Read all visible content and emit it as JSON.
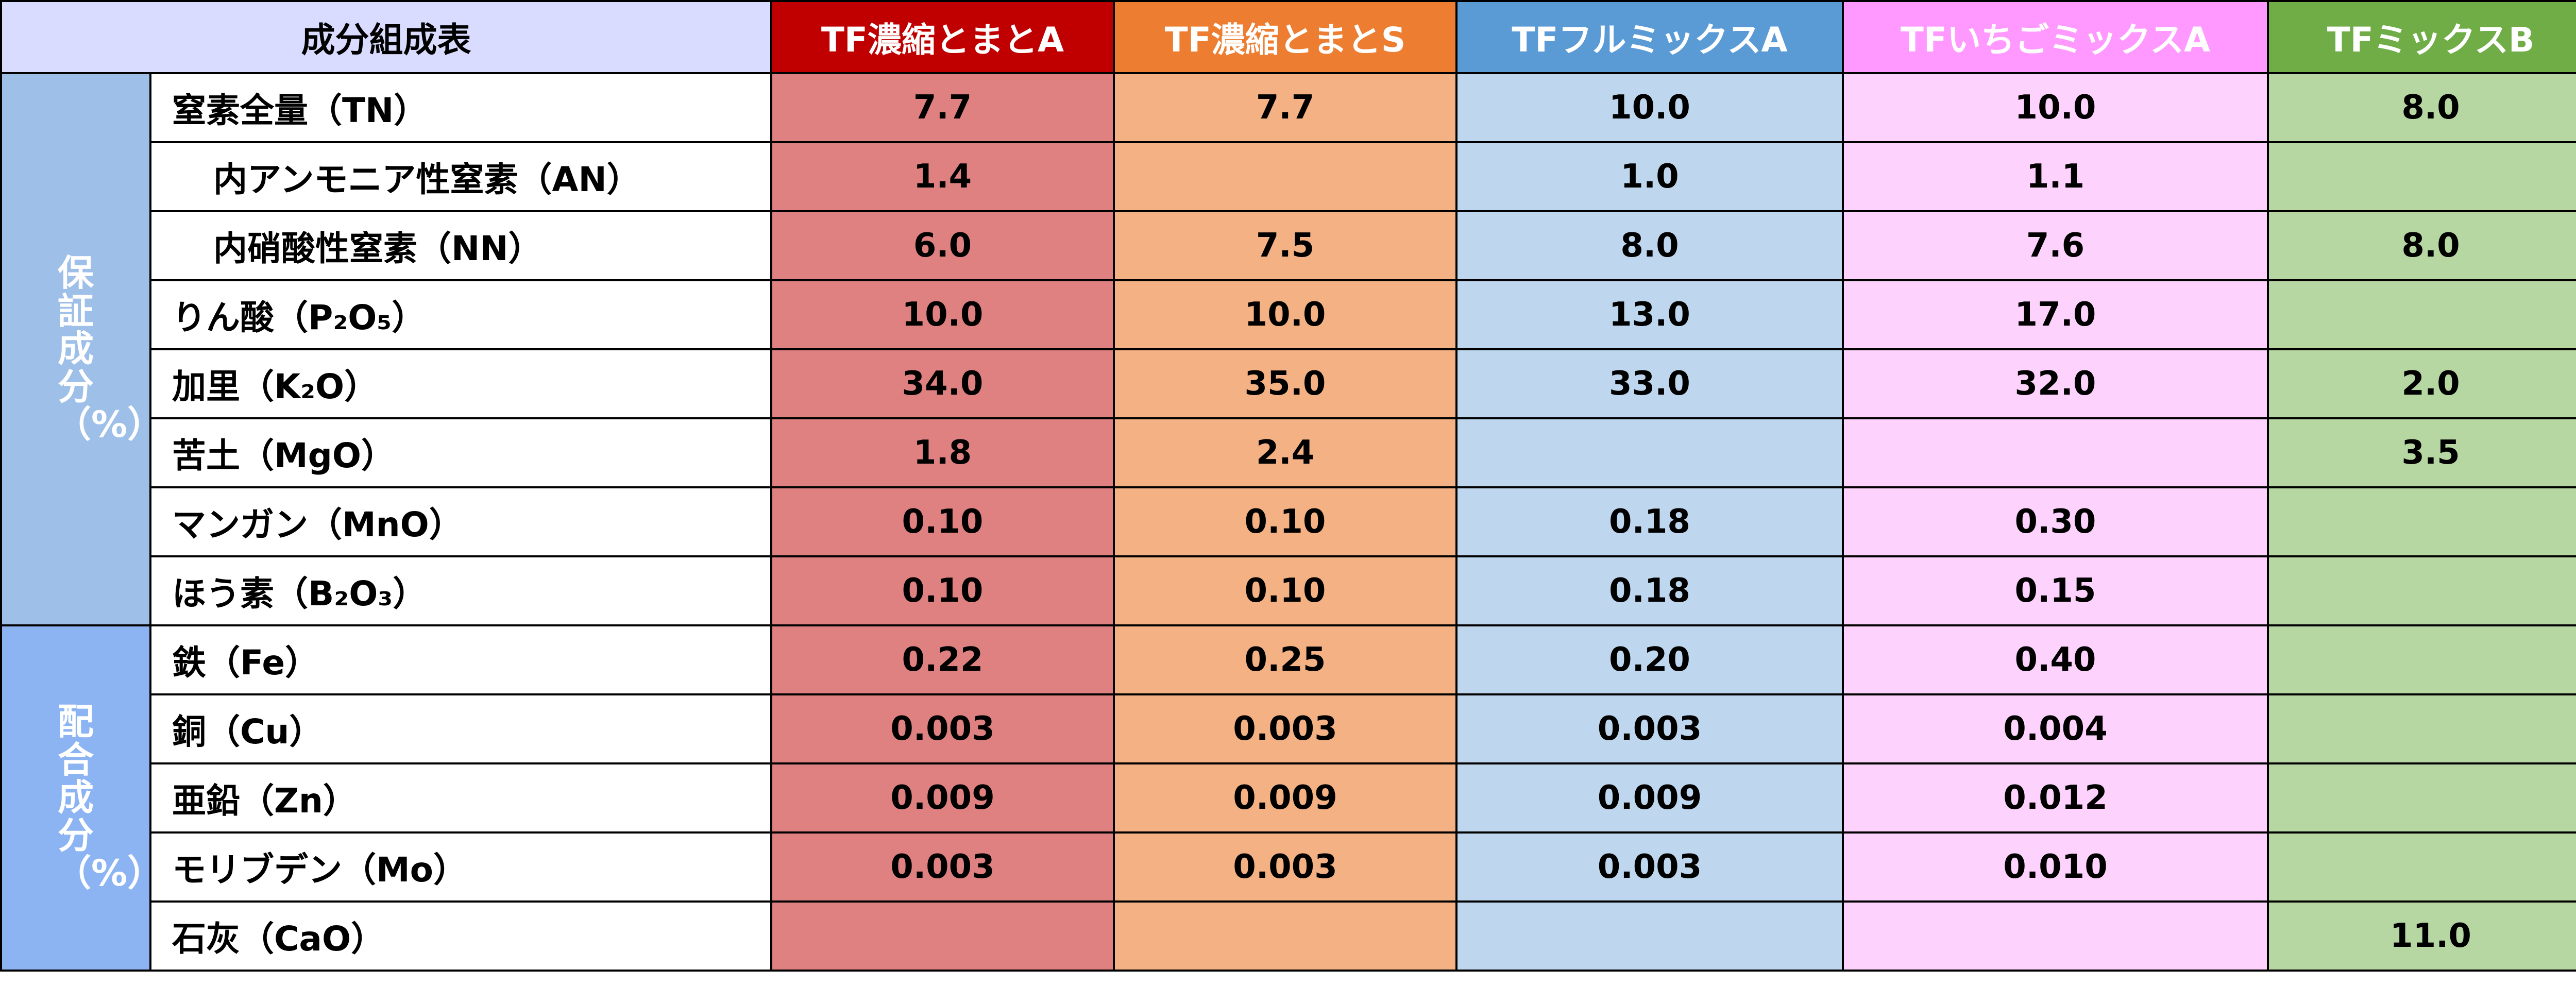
{
  "header": {
    "corner": "成分組成表",
    "products": [
      {
        "name": "TF濃縮とまとA",
        "color": "#c00000"
      },
      {
        "name": "TF濃縮とまとS",
        "color": "#ed7d31"
      },
      {
        "name": "TFフルミックスA",
        "color": "#5b9bd5"
      },
      {
        "name": "TFいちごミックスA",
        "color": "#ff99ff"
      },
      {
        "name": "TFミックスB",
        "color": "#70ad47"
      }
    ]
  },
  "groups": {
    "guaranteed": "保証成分（%）",
    "blended": "配合成分（%）"
  },
  "rows": [
    {
      "label": "窒素全量（TN）",
      "values": [
        "7.7",
        "7.7",
        "10.0",
        "10.0",
        "8.0"
      ]
    },
    {
      "label": "内アンモニア性窒素（AN）",
      "values": [
        "1.4",
        "",
        "1.0",
        "1.1",
        ""
      ]
    },
    {
      "label": "内硝酸性窒素（NN）",
      "values": [
        "6.0",
        "7.5",
        "8.0",
        "7.6",
        "8.0"
      ]
    },
    {
      "label": "りん酸（P₂O₅）",
      "values": [
        "10.0",
        "10.0",
        "13.0",
        "17.0",
        ""
      ]
    },
    {
      "label": "加里（K₂O）",
      "values": [
        "34.0",
        "35.0",
        "33.0",
        "32.0",
        "2.0"
      ]
    },
    {
      "label": "苦土（MgO）",
      "values": [
        "1.8",
        "2.4",
        "",
        "",
        "3.5"
      ]
    },
    {
      "label": "マンガン（MnO）",
      "values": [
        "0.10",
        "0.10",
        "0.18",
        "0.30",
        ""
      ]
    },
    {
      "label": "ほう素（B₂O₃）",
      "values": [
        "0.10",
        "0.10",
        "0.18",
        "0.15",
        ""
      ]
    },
    {
      "label": "鉄（Fe）",
      "values": [
        "0.22",
        "0.25",
        "0.20",
        "0.40",
        ""
      ]
    },
    {
      "label": "銅（Cu）",
      "values": [
        "0.003",
        "0.003",
        "0.003",
        "0.004",
        ""
      ]
    },
    {
      "label": "亜鉛（Zn）",
      "values": [
        "0.009",
        "0.009",
        "0.009",
        "0.012",
        ""
      ]
    },
    {
      "label": "モリブデン（Mo）",
      "values": [
        "0.003",
        "0.003",
        "0.003",
        "0.010",
        ""
      ]
    },
    {
      "label": "石灰（CaO）",
      "values": [
        "",
        "",
        "",
        "",
        "11.0"
      ]
    }
  ]
}
